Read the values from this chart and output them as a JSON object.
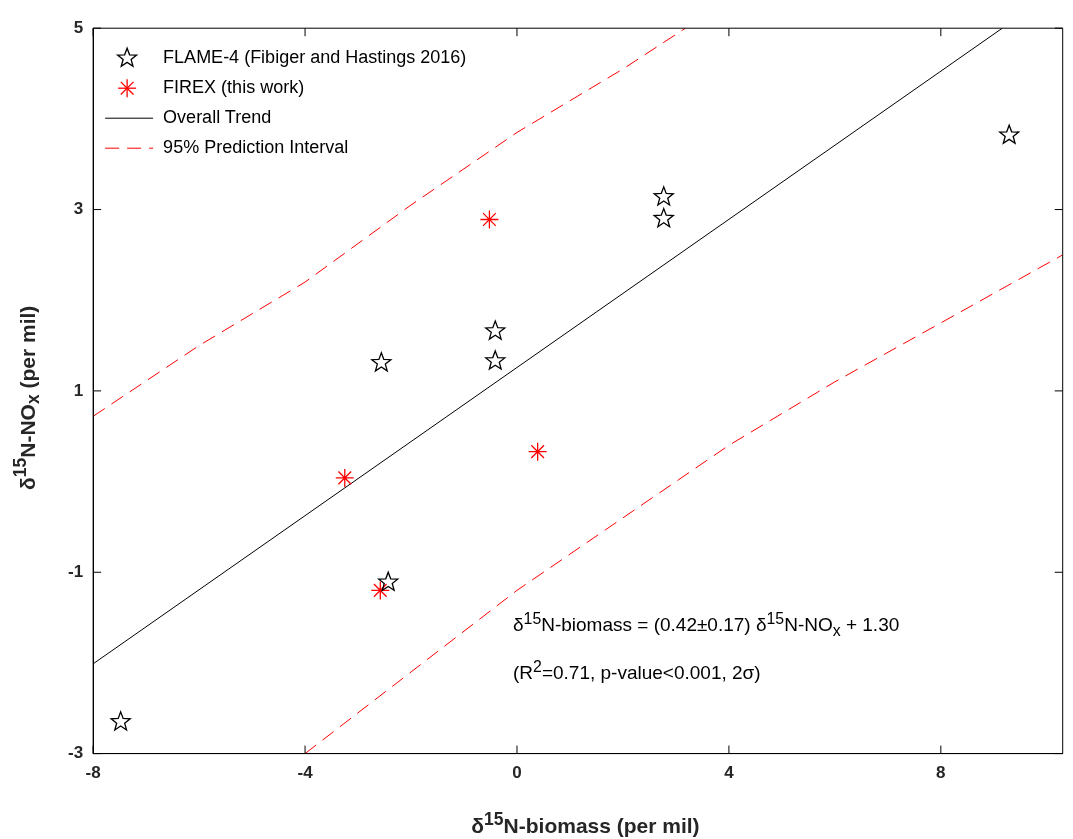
{
  "chart_data": {
    "type": "scatter",
    "xlabel": "δ$^{15}$N-biomass (per mil)",
    "ylabel": "δ$^{15}$N-NO$_{x}$ (per mil)",
    "xlim": [
      -8,
      10.3
    ],
    "xticks": [
      -8,
      -4,
      0,
      4,
      8
    ],
    "ylim": [
      -3,
      5
    ],
    "yticks": [
      -3,
      -1,
      1,
      3,
      5
    ],
    "grid": false,
    "legend": "top left",
    "annotations": [
      "δ$^{15}$N-biomass = (0.42±0.17) δ$^{15}$N-NO$_{x}$ + 1.30",
      "(R$^{2}$=0.71, p-value<0.001, 2σ)"
    ],
    "series": [
      {
        "name": "FLAME-4 (Fibiger and Hastings 2016)",
        "type": "scatter",
        "marker": "star",
        "color": "#000000",
        "x": [
          -7.48,
          -2.56,
          -0.41,
          -0.41,
          -2.43,
          2.77,
          2.77,
          9.29
        ],
        "values": [
          -2.65,
          1.31,
          1.66,
          1.33,
          -1.11,
          3.14,
          2.9,
          3.82
        ]
      },
      {
        "name": "FIREX (this work)",
        "type": "scatter",
        "marker": "cross",
        "color": "#ff0000",
        "x": [
          -0.52,
          -3.25,
          0.39,
          -2.58
        ],
        "values": [
          2.89,
          0.04,
          0.33,
          -1.2
        ]
      },
      {
        "name": "Overall Trend",
        "type": "line",
        "line_style": "solid",
        "color": "#000000",
        "x": [
          -8,
          9.16
        ],
        "values": [
          -2.01,
          5
        ]
      },
      {
        "name": "95% Prediction Interval",
        "type": "line",
        "line_style": "dashed",
        "color": "#ff0000",
        "x": [
          -8,
          -6,
          -4,
          -2,
          0,
          2,
          3.18
        ],
        "values": [
          0.72,
          1.5,
          2.2,
          3.05,
          3.85,
          4.55,
          5
        ]
      },
      {
        "type": "line",
        "line_style": "dashed",
        "color": "#ff0000",
        "x": [
          -4,
          -2,
          0,
          2,
          4,
          6,
          8,
          10.3
        ],
        "values": [
          -3,
          -2.1,
          -1.2,
          -0.4,
          0.4,
          1.1,
          1.75,
          2.5
        ]
      }
    ]
  }
}
